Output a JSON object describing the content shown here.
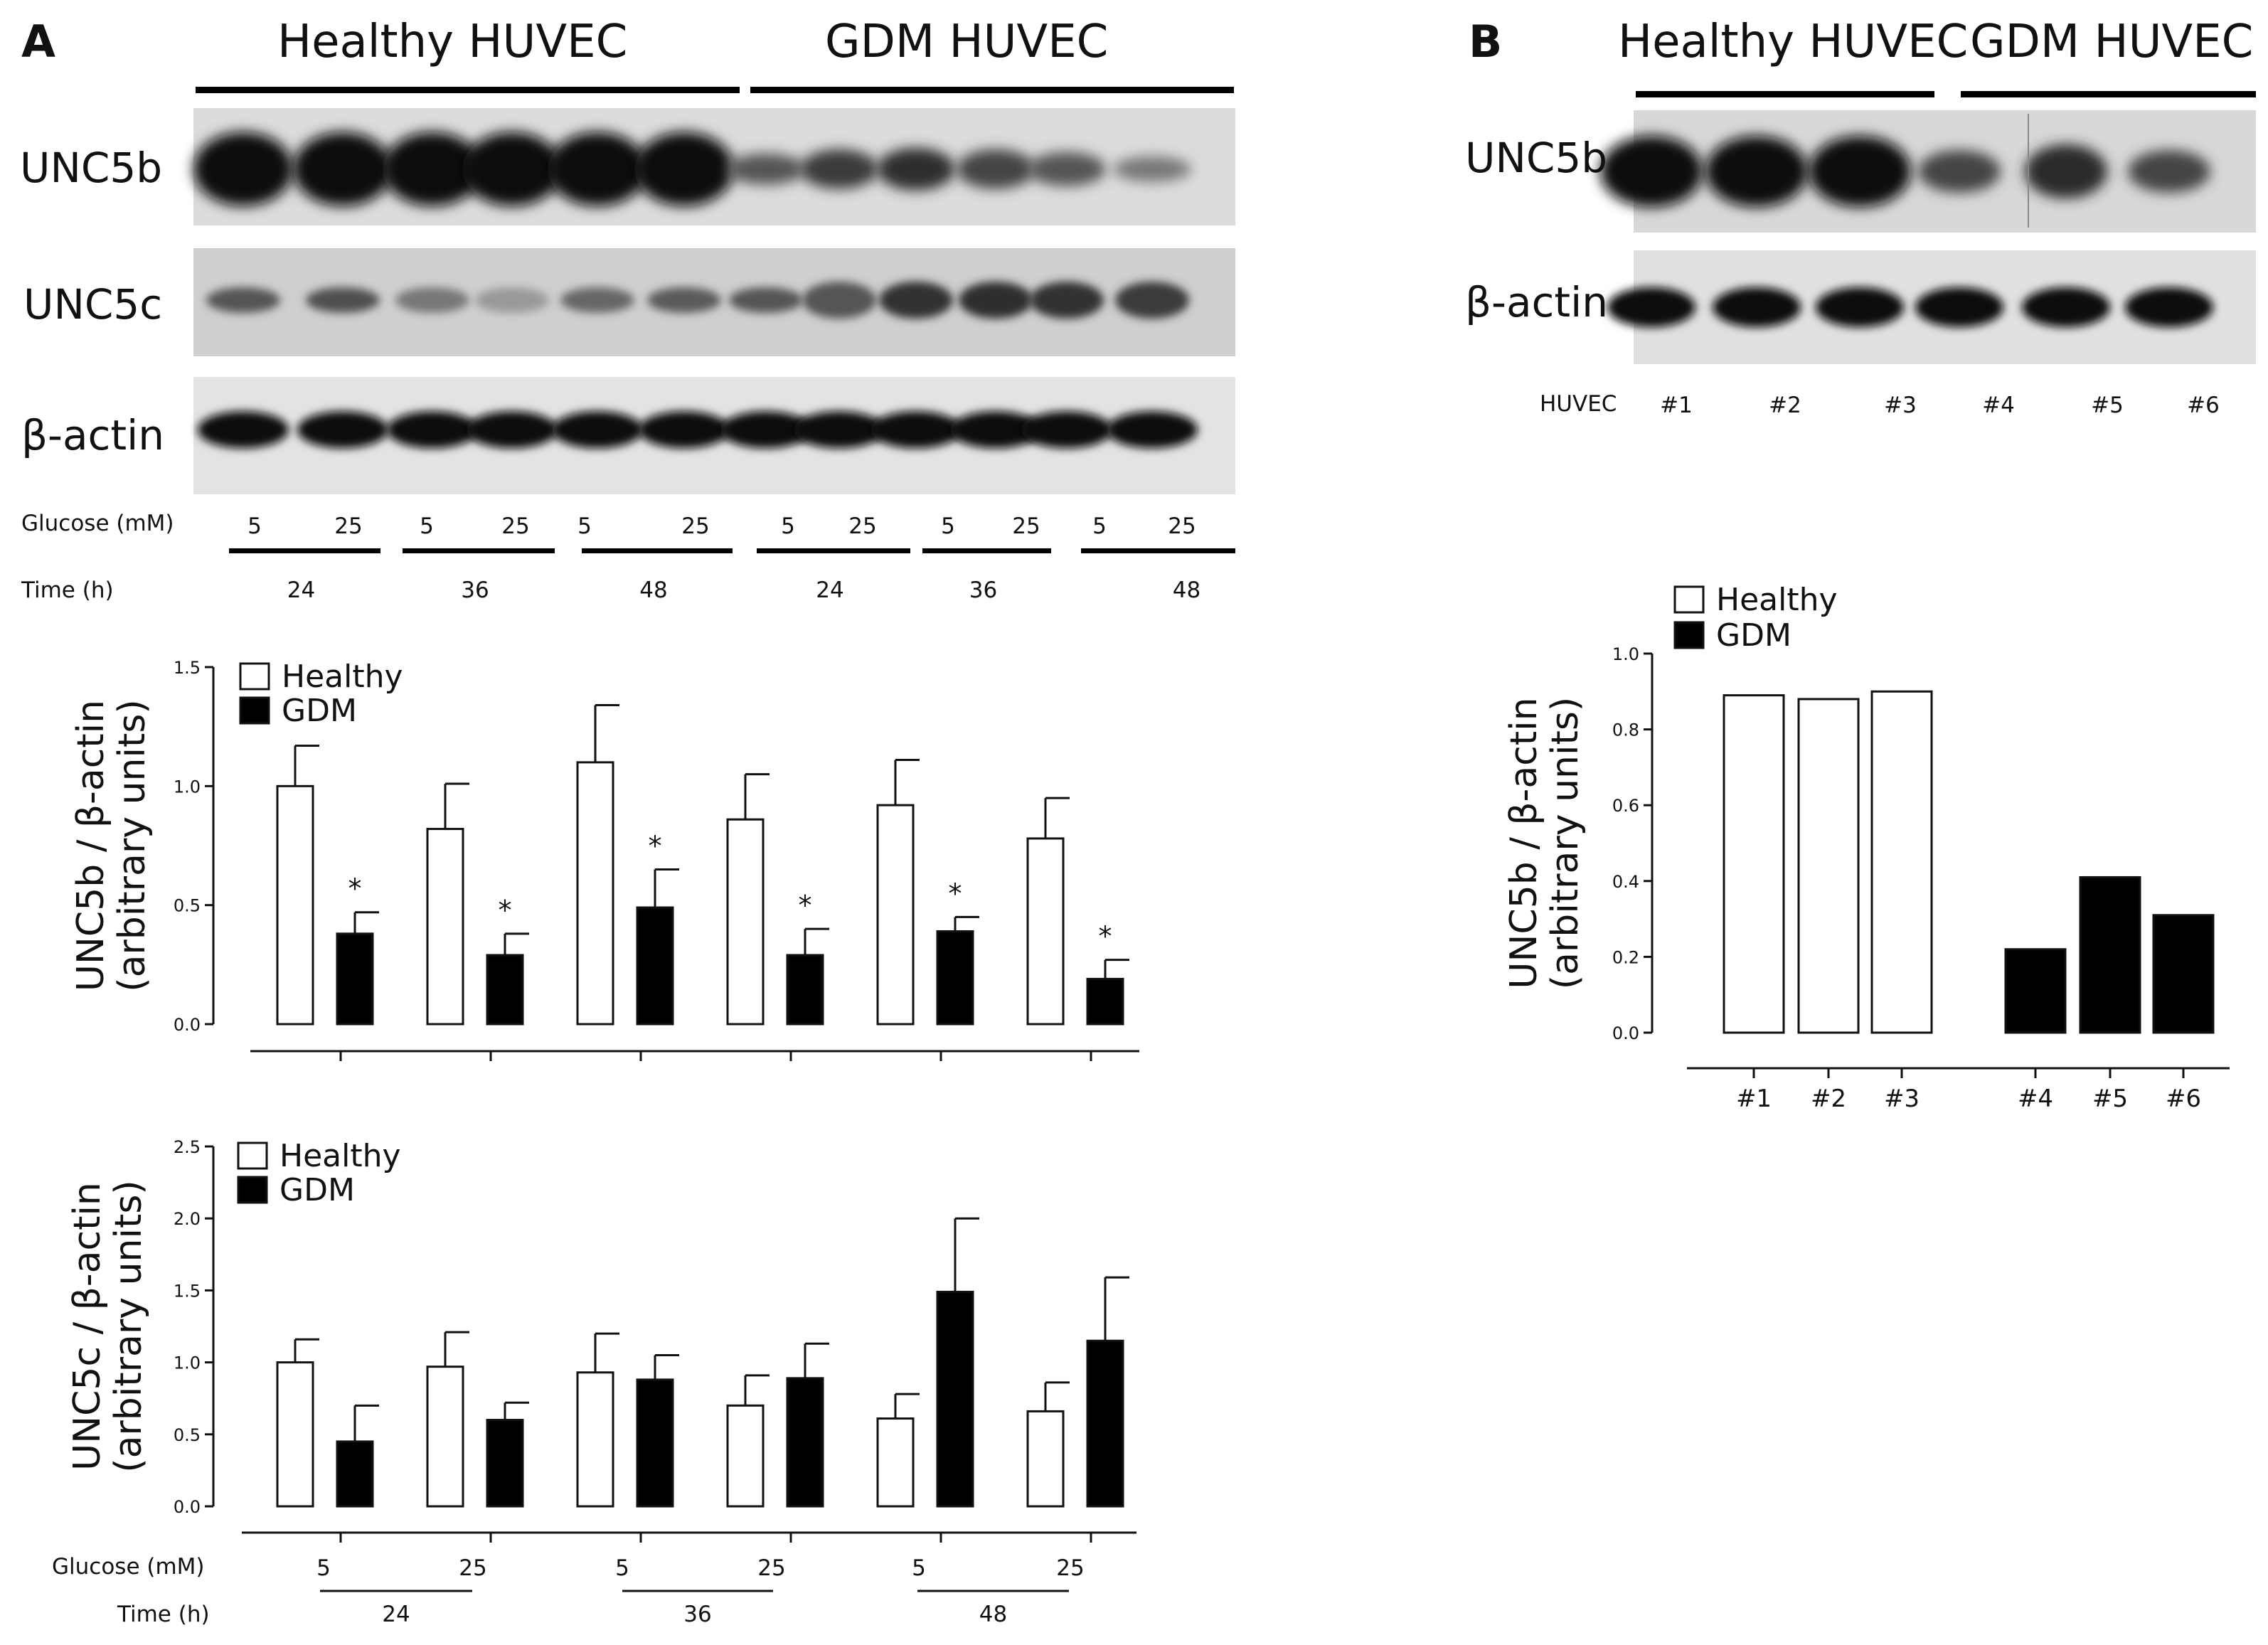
{
  "panelA": {
    "letter": "A",
    "group_labels": [
      "Healthy HUVEC",
      "GDM HUVEC"
    ],
    "blot_labels": [
      "UNC5b",
      "UNC5c",
      "β-actin"
    ],
    "glucose_label": "Glucose (mM)",
    "glucose_values": [
      "5",
      "25",
      "5",
      "25",
      "5",
      "25",
      "5",
      "25",
      "5",
      "25",
      "5",
      "25"
    ],
    "time_label": "Time (h)",
    "time_values": [
      "24",
      "36",
      "48",
      "24",
      "36",
      "48"
    ]
  },
  "panelB": {
    "letter": "B",
    "group_labels": [
      "Healthy HUVEC",
      "GDM HUVEC"
    ],
    "blot_labels": [
      "UNC5b",
      "β-actin"
    ],
    "sample_label": "HUVEC",
    "sample_ids": [
      "#1",
      "#2",
      "#3",
      "#4",
      "#5",
      "#6"
    ]
  },
  "colors": {
    "healthy": "#ffffff",
    "gdm": "#000000",
    "axis": "#111111"
  },
  "chart_data": [
    {
      "id": "unc5b",
      "type": "bar",
      "ylabel": "UNC5b / β-actin",
      "ylabel2": "(arbitrary units)",
      "ylim": [
        0,
        1.5
      ],
      "yticks": [
        "0.0",
        "0.5",
        "1.0",
        "1.5"
      ],
      "legend": [
        "Healthy",
        "GDM"
      ],
      "groups": 6,
      "series": [
        {
          "name": "Healthy",
          "values": [
            1.0,
            0.82,
            1.1,
            0.86,
            0.92,
            0.78
          ],
          "errors": [
            0.17,
            0.19,
            0.24,
            0.19,
            0.19,
            0.17
          ]
        },
        {
          "name": "GDM",
          "values": [
            0.38,
            0.29,
            0.49,
            0.29,
            0.39,
            0.19
          ],
          "errors": [
            0.09,
            0.09,
            0.16,
            0.11,
            0.06,
            0.08
          ]
        }
      ],
      "significance": [
        "*",
        "*",
        "*",
        "*",
        "*",
        "*"
      ]
    },
    {
      "id": "unc5c",
      "type": "bar",
      "ylabel": "UNC5c / β-actin",
      "ylabel2": "(arbitrary units)",
      "ylim": [
        0,
        2.5
      ],
      "yticks": [
        "0.0",
        "0.5",
        "1.0",
        "1.5",
        "2.0",
        "2.5"
      ],
      "legend": [
        "Healthy",
        "GDM"
      ],
      "groups": 6,
      "series": [
        {
          "name": "Healthy",
          "values": [
            1.0,
            0.97,
            0.93,
            0.7,
            0.61,
            0.66
          ],
          "errors": [
            0.16,
            0.24,
            0.27,
            0.21,
            0.17,
            0.2
          ]
        },
        {
          "name": "GDM",
          "values": [
            0.45,
            0.6,
            0.88,
            0.89,
            1.49,
            1.15
          ],
          "errors": [
            0.25,
            0.12,
            0.17,
            0.24,
            0.51,
            0.44
          ]
        }
      ],
      "xlabel_glucose": "Glucose (mM)",
      "glucose_ticks": [
        "5",
        "25",
        "5",
        "25",
        "5",
        "25"
      ],
      "xlabel_time": "Time (h)",
      "time_ticks": [
        "24",
        "36",
        "48"
      ]
    },
    {
      "id": "unc5b_b",
      "type": "bar",
      "ylabel": "UNC5b / β-actin",
      "ylabel2": "(arbitrary units)",
      "ylim": [
        0,
        1.0
      ],
      "yticks": [
        "0.0",
        "0.2",
        "0.4",
        "0.6",
        "0.8",
        "1.0"
      ],
      "legend": [
        "Healthy",
        "GDM"
      ],
      "categories": [
        "#1",
        "#2",
        "#3",
        "#4",
        "#5",
        "#6"
      ],
      "values": [
        0.89,
        0.88,
        0.9,
        0.22,
        0.41,
        0.31
      ],
      "group": [
        "Healthy",
        "Healthy",
        "Healthy",
        "GDM",
        "GDM",
        "GDM"
      ]
    }
  ]
}
